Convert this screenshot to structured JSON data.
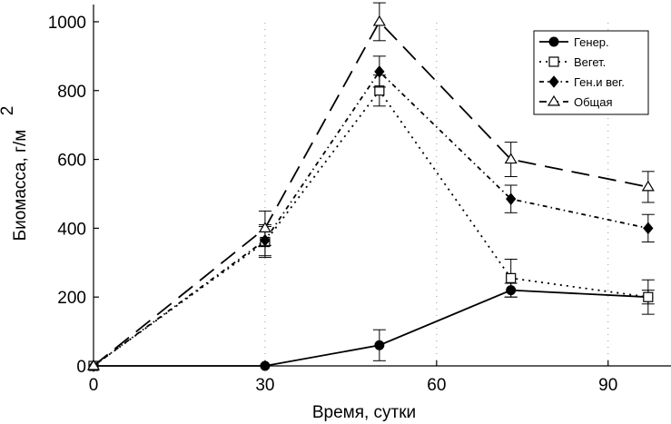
{
  "chart_data": {
    "type": "line",
    "xlabel": "Время, сутки",
    "ylabel": "Биомасса, г/м",
    "ylabel_superscript": "2",
    "xlim": [
      0,
      101
    ],
    "ylim": [
      0,
      1050
    ],
    "xticks": [
      0,
      30,
      60,
      90
    ],
    "yticks": [
      0,
      200,
      400,
      600,
      800,
      1000
    ],
    "grid": false,
    "legend_position": "top-right",
    "series": [
      {
        "name": "Генер.",
        "style": "solid",
        "marker": "circle-filled",
        "x": [
          0,
          30,
          50,
          73,
          97
        ],
        "y": [
          0,
          0,
          60,
          220,
          200
        ],
        "err": [
          0,
          0,
          45,
          20,
          20
        ]
      },
      {
        "name": "Вегет.",
        "style": "dotted",
        "marker": "square-open",
        "x": [
          0,
          30,
          50,
          73,
          97
        ],
        "y": [
          0,
          360,
          800,
          255,
          200
        ],
        "err": [
          0,
          45,
          45,
          55,
          50
        ]
      },
      {
        "name": "Ген.и вег.",
        "style": "dash-dot",
        "marker": "diamond-filled",
        "x": [
          0,
          30,
          50,
          73,
          97
        ],
        "y": [
          0,
          365,
          855,
          485,
          400
        ],
        "err": [
          0,
          45,
          45,
          40,
          40
        ]
      },
      {
        "name": "Общая",
        "style": "dashed",
        "marker": "triangle-open",
        "x": [
          0,
          30,
          50,
          73,
          97
        ],
        "y": [
          0,
          400,
          1000,
          600,
          520
        ],
        "err": [
          0,
          50,
          55,
          50,
          45
        ]
      }
    ]
  }
}
